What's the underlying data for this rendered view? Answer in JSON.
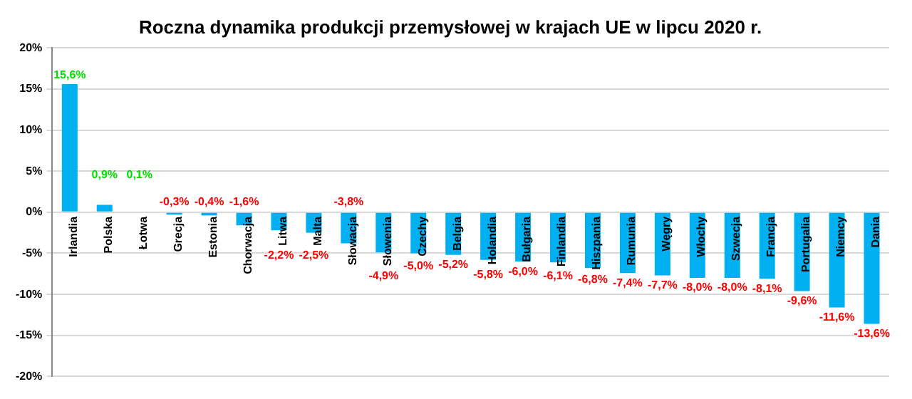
{
  "chart_data": {
    "type": "bar",
    "title": "Roczna dynamika produkcji przemysłowej w krajach UE w lipcu 2020 r.",
    "categories": [
      "Irlandia",
      "Polska",
      "Łotwa",
      "Grecja",
      "Estonia",
      "Chorwacja",
      "Litwa",
      "Malta",
      "Słowacja",
      "Słowenia",
      "Czechy",
      "Belgia",
      "Holandia",
      "Bułgaria",
      "Finlandia",
      "Hiszpania",
      "Rumunia",
      "Węgry",
      "Włochy",
      "Szwecja",
      "Francja",
      "Portugalia",
      "Niemcy",
      "Dania"
    ],
    "values": [
      15.6,
      0.9,
      0.1,
      -0.3,
      -0.4,
      -1.6,
      -2.2,
      -2.5,
      -3.8,
      -4.9,
      -5.0,
      -5.2,
      -5.8,
      -6.0,
      -6.1,
      -6.8,
      -7.4,
      -7.7,
      -8.0,
      -8.0,
      -8.1,
      -9.6,
      -11.6,
      -13.6
    ],
    "value_labels": [
      "15,6%",
      "0,9%",
      "0,1%",
      "-0,3%",
      "-0,4%",
      "-1,6%",
      "-2,2%",
      "-2,5%",
      "-3,8%",
      "-4,9%",
      "-5,0%",
      "-5,2%",
      "-5,8%",
      "-6,0%",
      "-6,1%",
      "-6,8%",
      "-7,4%",
      "-7,7%",
      "-8,0%",
      "-8,0%",
      "-8,1%",
      "-9,6%",
      "-11,6%",
      "-13,6%"
    ],
    "color": "#00b0f0",
    "ylim": [
      -20,
      20
    ],
    "yticks": [
      {
        "value": -20,
        "label": "-20%"
      },
      {
        "value": -15,
        "label": "-15%"
      },
      {
        "value": -10,
        "label": "-10%"
      },
      {
        "value": -5,
        "label": "-5%"
      },
      {
        "value": 0,
        "label": "0%"
      },
      {
        "value": 5,
        "label": "5%"
      },
      {
        "value": 10,
        "label": "10%"
      },
      {
        "value": 15,
        "label": "15%"
      },
      {
        "value": 20,
        "label": "20%"
      }
    ],
    "grid": "y",
    "legend": false
  }
}
